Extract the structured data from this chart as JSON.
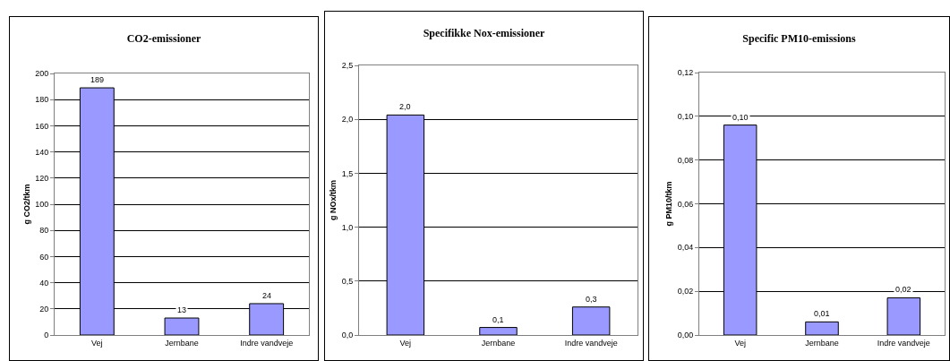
{
  "chart_data": [
    {
      "type": "bar",
      "title": "CO2-emissioner",
      "ylabel": "g CO2/tkm",
      "categories": [
        "Vej",
        "Jernbane",
        "Indre vandveje"
      ],
      "values": [
        189,
        13,
        24
      ],
      "color": "#9999ff",
      "data_labels": true,
      "ylim": [
        0,
        200
      ],
      "yticks": [
        0,
        20,
        40,
        60,
        80,
        100,
        120,
        140,
        160,
        180,
        200
      ],
      "grid": "y"
    },
    {
      "type": "bar",
      "title": "Specifikke Nox-emissioner",
      "ylabel": "g NOx/tkm",
      "categories": [
        "Vej",
        "Jernbane",
        "Indre vandveje"
      ],
      "values": [
        2.04,
        0.07,
        0.26
      ],
      "value_labels": [
        "2,0",
        "0,1",
        "0,3"
      ],
      "color": "#9999ff",
      "ylim": [
        0,
        2.5
      ],
      "yticks": [
        {
          "value": 0,
          "label": "0,0"
        },
        {
          "value": 0.5,
          "label": "0,5"
        },
        {
          "value": 1,
          "label": "1,0"
        },
        {
          "value": 1.5,
          "label": "1,5"
        },
        {
          "value": 2,
          "label": "2,0"
        },
        {
          "value": 2.5,
          "label": "2,5"
        }
      ],
      "grid": "y"
    },
    {
      "type": "bar",
      "title": "Specific PM10-emissions",
      "ylabel": "g PM10/tkm",
      "categories": [
        "Vej",
        "Jernbane",
        "Indre vandveje"
      ],
      "values": [
        0.096,
        0.006,
        0.017
      ],
      "value_labels": [
        "0,10",
        "0,01",
        "0,02"
      ],
      "color": "#9999ff",
      "ylim": [
        0,
        0.12
      ],
      "yticks": [
        {
          "value": 0,
          "label": "0,00"
        },
        {
          "value": 0.02,
          "label": "0,02"
        },
        {
          "value": 0.04,
          "label": "0,04"
        },
        {
          "value": 0.06,
          "label": "0,06"
        },
        {
          "value": 0.08,
          "label": "0,08"
        },
        {
          "value": 0.1,
          "label": "0,10"
        },
        {
          "value": 0.12,
          "label": "0,12"
        }
      ],
      "grid": "y"
    }
  ]
}
